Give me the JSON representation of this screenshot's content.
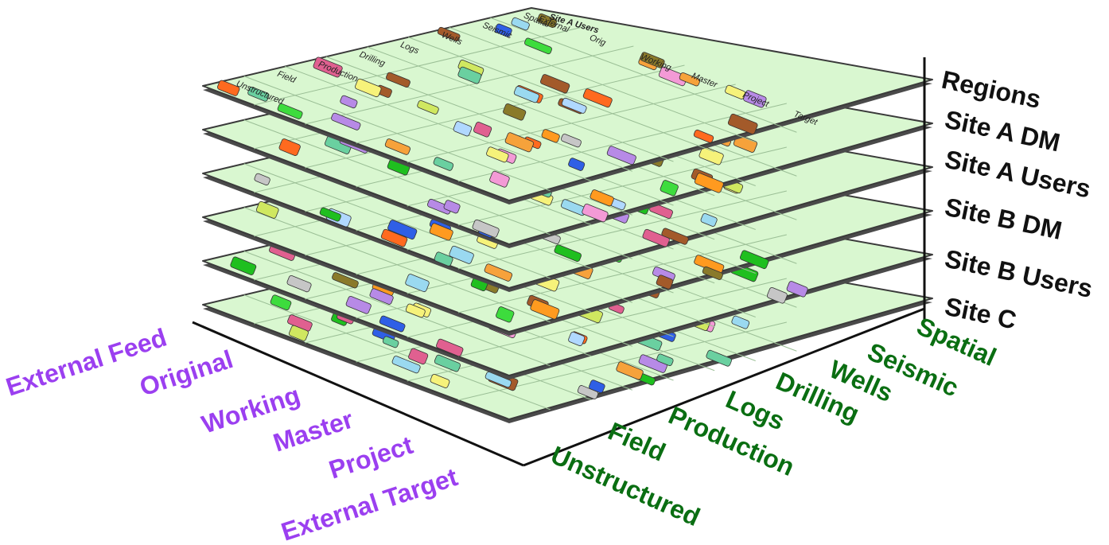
{
  "layers": [
    "Regions",
    "Site A DM",
    "Site A Users",
    "Site B DM",
    "Site B Users",
    "Site C"
  ],
  "stages": [
    "External Feed",
    "Original",
    "Working",
    "Master",
    "Project",
    "External Target"
  ],
  "domains": [
    "Spatial",
    "Seismic",
    "Wells",
    "Drilling",
    "Logs",
    "Production",
    "Field",
    "Unstructured"
  ],
  "plane_header": {
    "title": "Site A Users",
    "row_labels": [
      "Unstructured",
      "Field",
      "Production",
      "Drilling",
      "Logs",
      "Wells",
      "Seismic",
      "Spatial"
    ],
    "column_labels": [
      "External",
      "Orig",
      "Working",
      "Master",
      "Project",
      "Target"
    ]
  },
  "colors": {
    "plane_fill": "#d9f7d0",
    "plane_edge": "#3a3a3a",
    "stage_text": "#9b3ff0",
    "domain_text": "#0a6e12",
    "layer_text": "#111111",
    "chips": [
      "#ff9a1f",
      "#ff6a1f",
      "#f6a23b",
      "#2f5fe6",
      "#f6f27a",
      "#8a7a2a",
      "#a35a2a",
      "#b78ae6",
      "#f39ad6",
      "#3ddc3d",
      "#1fbf1f",
      "#b0d8ff",
      "#9ad9f0",
      "#6ad0a0",
      "#c6c6c6",
      "#e06090",
      "#d0e860"
    ]
  }
}
